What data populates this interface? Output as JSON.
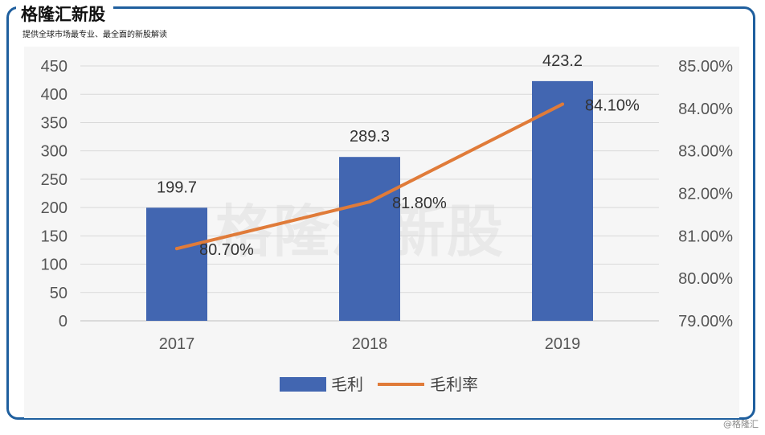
{
  "brand": {
    "name": "格隆汇新股",
    "tagline": "提供全球市场最专业、最全面的新股解读"
  },
  "watermark": "格隆汇新股",
  "footer_mark": "@格隆汇",
  "colors": {
    "frame": "#1f5f9e",
    "bar": "#4266b1",
    "line": "#e07b39",
    "plot_bg": "#f6f6f6"
  },
  "chart_data": {
    "type": "bar",
    "title": "",
    "xlabel": "",
    "ylabel": "",
    "categories": [
      "2017",
      "2018",
      "2019"
    ],
    "series": [
      {
        "name": "毛利",
        "type": "bar",
        "axis": "left",
        "values": [
          199.7,
          289.3,
          423.2
        ],
        "labels": [
          "199.7",
          "289.3",
          "423.2"
        ]
      },
      {
        "name": "毛利率",
        "type": "line",
        "axis": "right",
        "values": [
          80.7,
          81.8,
          84.1
        ],
        "labels": [
          "80.70%",
          "81.80%",
          "84.10%"
        ]
      }
    ],
    "ylim": [
      0,
      450
    ],
    "yticks": [
      "0",
      "50",
      "100",
      "150",
      "200",
      "250",
      "300",
      "350",
      "400",
      "450"
    ],
    "y2lim": [
      79.0,
      85.0
    ],
    "y2ticks": [
      "79.00%",
      "80.00%",
      "81.00%",
      "82.00%",
      "83.00%",
      "84.00%",
      "85.00%"
    ],
    "grid": true,
    "legend": "bottom-center"
  }
}
